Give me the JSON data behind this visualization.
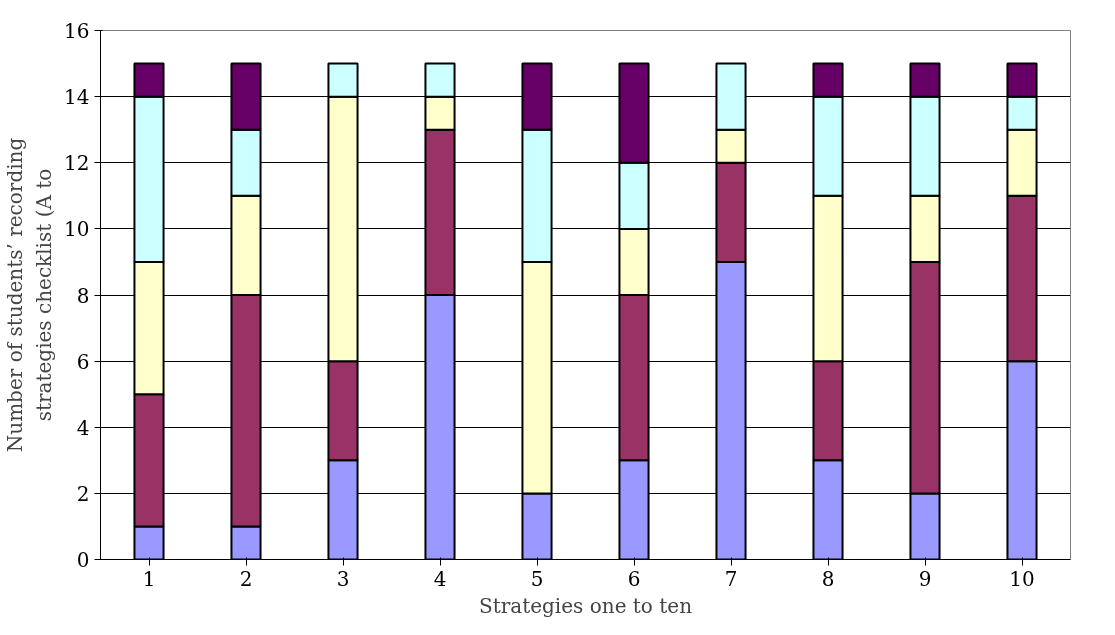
{
  "chart_data": {
    "type": "bar",
    "stacked": true,
    "xlabel": "Strategies one to ten",
    "ylabel": "Number of students’ recording\nstrategies checklist (A to",
    "categories": [
      "1",
      "2",
      "3",
      "4",
      "5",
      "6",
      "7",
      "8",
      "9",
      "10"
    ],
    "series": [
      {
        "color": "#9999ff",
        "values": [
          1,
          1,
          3,
          8,
          2,
          3,
          9,
          3,
          2,
          6
        ]
      },
      {
        "color": "#993366",
        "values": [
          4,
          7,
          3,
          5,
          0,
          5,
          3,
          3,
          7,
          5
        ]
      },
      {
        "color": "#ffffcc",
        "values": [
          4,
          3,
          8,
          1,
          7,
          2,
          1,
          5,
          2,
          2
        ]
      },
      {
        "color": "#ccffff",
        "values": [
          5,
          2,
          1,
          1,
          4,
          2,
          2,
          3,
          3,
          1
        ]
      },
      {
        "color": "#660066",
        "values": [
          1,
          2,
          0,
          0,
          2,
          3,
          0,
          1,
          1,
          1
        ]
      }
    ],
    "ylim": [
      0,
      16
    ],
    "yticks": [
      0,
      2,
      4,
      6,
      8,
      10,
      12,
      14,
      16
    ],
    "grid": "y"
  }
}
